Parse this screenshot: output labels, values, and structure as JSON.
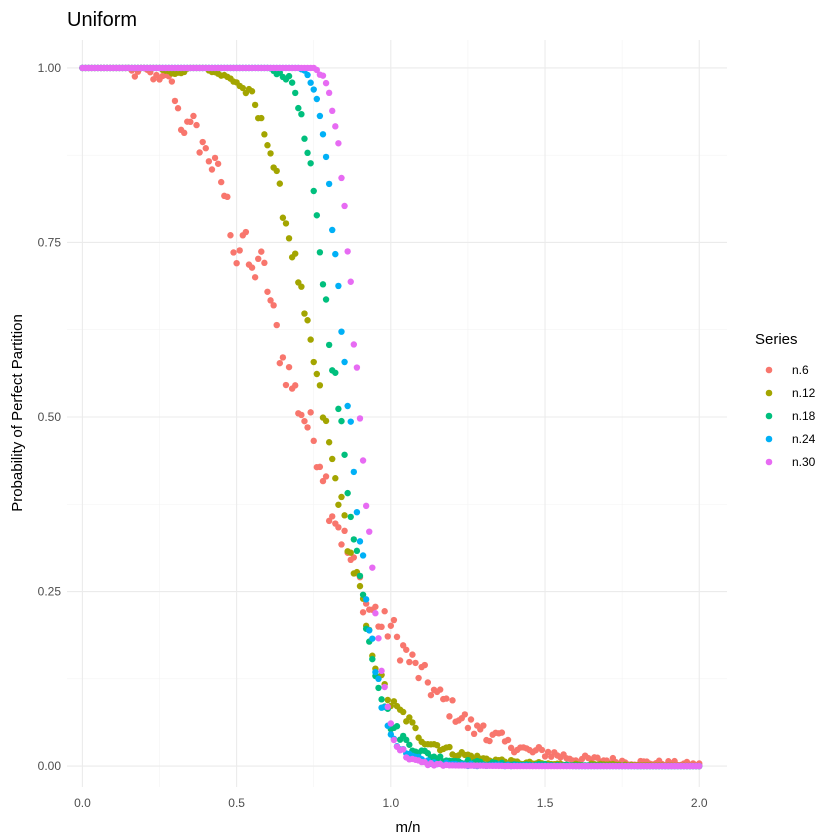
{
  "chart_data": {
    "type": "scatter",
    "title": "Uniform",
    "xlabel": "m/n",
    "ylabel": "Probability of Perfect Partition",
    "xlim": [
      -0.05,
      2.09
    ],
    "ylim": [
      -0.03,
      1.04
    ],
    "x_ticks": [
      0.0,
      0.5,
      1.0,
      1.5,
      2.0
    ],
    "x_tick_labels": [
      "0.0",
      "0.5",
      "1.0",
      "1.5",
      "2.0"
    ],
    "y_ticks": [
      0.0,
      0.25,
      0.5,
      0.75,
      1.0
    ],
    "y_tick_labels": [
      "0.00",
      "0.25",
      "0.50",
      "0.75",
      "1.00"
    ],
    "grid": true,
    "legend": {
      "title": "Series",
      "position": "right"
    },
    "x_step": 0.01,
    "series": [
      {
        "name": "n.6",
        "color": "#F8766D",
        "points": [
          [
            0.0,
            1.0
          ],
          [
            0.05,
            1.0
          ],
          [
            0.1,
            1.0
          ],
          [
            0.15,
            1.0
          ],
          [
            0.17,
            0.99
          ],
          [
            0.2,
            1.0
          ],
          [
            0.25,
            0.98
          ],
          [
            0.28,
            0.99
          ],
          [
            0.3,
            0.96
          ],
          [
            0.32,
            0.92
          ],
          [
            0.35,
            0.91
          ],
          [
            0.37,
            0.93
          ],
          [
            0.38,
            0.88
          ],
          [
            0.4,
            0.89
          ],
          [
            0.42,
            0.86
          ],
          [
            0.45,
            0.84
          ],
          [
            0.47,
            0.8
          ],
          [
            0.5,
            0.73
          ],
          [
            0.52,
            0.76
          ],
          [
            0.55,
            0.7
          ],
          [
            0.57,
            0.73
          ],
          [
            0.6,
            0.69
          ],
          [
            0.62,
            0.64
          ],
          [
            0.65,
            0.58
          ],
          [
            0.67,
            0.56
          ],
          [
            0.7,
            0.52
          ],
          [
            0.72,
            0.5
          ],
          [
            0.75,
            0.47
          ],
          [
            0.78,
            0.43
          ],
          [
            0.8,
            0.38
          ],
          [
            0.82,
            0.36
          ],
          [
            0.85,
            0.32
          ],
          [
            0.88,
            0.28
          ],
          [
            0.9,
            0.26
          ],
          [
            0.92,
            0.23
          ],
          [
            0.95,
            0.22
          ],
          [
            0.97,
            0.2
          ],
          [
            1.0,
            0.2
          ],
          [
            1.02,
            0.18
          ],
          [
            1.05,
            0.16
          ],
          [
            1.08,
            0.14
          ],
          [
            1.1,
            0.13
          ],
          [
            1.12,
            0.12
          ],
          [
            1.15,
            0.1
          ],
          [
            1.18,
            0.09
          ],
          [
            1.2,
            0.08
          ],
          [
            1.23,
            0.07
          ],
          [
            1.25,
            0.06
          ],
          [
            1.28,
            0.05
          ],
          [
            1.3,
            0.06
          ],
          [
            1.32,
            0.04
          ],
          [
            1.35,
            0.04
          ],
          [
            1.38,
            0.03
          ],
          [
            1.4,
            0.03
          ],
          [
            1.45,
            0.02
          ],
          [
            1.5,
            0.02
          ],
          [
            1.55,
            0.015
          ],
          [
            1.6,
            0.01
          ],
          [
            1.7,
            0.008
          ],
          [
            1.8,
            0.005
          ],
          [
            1.9,
            0.004
          ],
          [
            2.0,
            0.002
          ]
        ]
      },
      {
        "name": "n.12",
        "color": "#A3A500",
        "points": [
          [
            0.0,
            1.0
          ],
          [
            0.1,
            1.0
          ],
          [
            0.2,
            1.0
          ],
          [
            0.25,
            1.0
          ],
          [
            0.3,
            0.99
          ],
          [
            0.35,
            1.0
          ],
          [
            0.4,
            1.0
          ],
          [
            0.45,
            0.99
          ],
          [
            0.5,
            0.98
          ],
          [
            0.52,
            0.97
          ],
          [
            0.55,
            0.96
          ],
          [
            0.57,
            0.93
          ],
          [
            0.6,
            0.9
          ],
          [
            0.62,
            0.86
          ],
          [
            0.65,
            0.8
          ],
          [
            0.67,
            0.76
          ],
          [
            0.7,
            0.7
          ],
          [
            0.72,
            0.64
          ],
          [
            0.75,
            0.58
          ],
          [
            0.77,
            0.53
          ],
          [
            0.8,
            0.46
          ],
          [
            0.82,
            0.41
          ],
          [
            0.85,
            0.35
          ],
          [
            0.87,
            0.3
          ],
          [
            0.9,
            0.25
          ],
          [
            0.92,
            0.2
          ],
          [
            0.95,
            0.15
          ],
          [
            0.97,
            0.12
          ],
          [
            1.0,
            0.09
          ],
          [
            1.02,
            0.08
          ],
          [
            1.05,
            0.07
          ],
          [
            1.08,
            0.05
          ],
          [
            1.1,
            0.04
          ],
          [
            1.12,
            0.035
          ],
          [
            1.15,
            0.03
          ],
          [
            1.18,
            0.025
          ],
          [
            1.2,
            0.02
          ],
          [
            1.25,
            0.015
          ],
          [
            1.3,
            0.01
          ],
          [
            1.35,
            0.008
          ],
          [
            1.4,
            0.005
          ],
          [
            1.5,
            0.003
          ],
          [
            1.6,
            0.002
          ],
          [
            1.8,
            0.001
          ],
          [
            2.0,
            0.0
          ]
        ]
      },
      {
        "name": "n.18",
        "color": "#00BF7D",
        "points": [
          [
            0.0,
            1.0
          ],
          [
            0.2,
            1.0
          ],
          [
            0.4,
            1.0
          ],
          [
            0.5,
            1.0
          ],
          [
            0.6,
            1.0
          ],
          [
            0.65,
            0.99
          ],
          [
            0.68,
            0.98
          ],
          [
            0.7,
            0.95
          ],
          [
            0.72,
            0.9
          ],
          [
            0.74,
            0.85
          ],
          [
            0.76,
            0.78
          ],
          [
            0.78,
            0.7
          ],
          [
            0.8,
            0.62
          ],
          [
            0.82,
            0.55
          ],
          [
            0.84,
            0.48
          ],
          [
            0.86,
            0.4
          ],
          [
            0.88,
            0.34
          ],
          [
            0.9,
            0.27
          ],
          [
            0.92,
            0.21
          ],
          [
            0.94,
            0.16
          ],
          [
            0.96,
            0.12
          ],
          [
            0.98,
            0.09
          ],
          [
            1.0,
            0.06
          ],
          [
            1.02,
            0.05
          ],
          [
            1.05,
            0.035
          ],
          [
            1.08,
            0.025
          ],
          [
            1.1,
            0.02
          ],
          [
            1.15,
            0.012
          ],
          [
            1.2,
            0.008
          ],
          [
            1.3,
            0.004
          ],
          [
            1.4,
            0.002
          ],
          [
            1.6,
            0.001
          ],
          [
            1.8,
            0.0
          ],
          [
            2.0,
            0.0
          ]
        ]
      },
      {
        "name": "n.24",
        "color": "#00B0F6",
        "points": [
          [
            0.0,
            1.0
          ],
          [
            0.2,
            1.0
          ],
          [
            0.4,
            1.0
          ],
          [
            0.6,
            1.0
          ],
          [
            0.7,
            1.0
          ],
          [
            0.73,
            0.99
          ],
          [
            0.75,
            0.97
          ],
          [
            0.77,
            0.93
          ],
          [
            0.79,
            0.86
          ],
          [
            0.81,
            0.78
          ],
          [
            0.83,
            0.68
          ],
          [
            0.85,
            0.58
          ],
          [
            0.87,
            0.48
          ],
          [
            0.89,
            0.38
          ],
          [
            0.91,
            0.29
          ],
          [
            0.93,
            0.21
          ],
          [
            0.95,
            0.14
          ],
          [
            0.97,
            0.09
          ],
          [
            0.99,
            0.06
          ],
          [
            1.01,
            0.04
          ],
          [
            1.03,
            0.025
          ],
          [
            1.06,
            0.015
          ],
          [
            1.1,
            0.008
          ],
          [
            1.15,
            0.004
          ],
          [
            1.2,
            0.002
          ],
          [
            1.4,
            0.001
          ],
          [
            1.6,
            0.0
          ],
          [
            2.0,
            0.0
          ]
        ]
      },
      {
        "name": "n.30",
        "color": "#E76BF3",
        "points": [
          [
            0.0,
            1.0
          ],
          [
            0.1,
            1.0
          ],
          [
            0.2,
            1.0
          ],
          [
            0.3,
            1.0
          ],
          [
            0.4,
            1.0
          ],
          [
            0.5,
            1.0
          ],
          [
            0.6,
            1.0
          ],
          [
            0.7,
            1.0
          ],
          [
            0.75,
            1.0
          ],
          [
            0.78,
            0.99
          ],
          [
            0.8,
            0.97
          ],
          [
            0.82,
            0.92
          ],
          [
            0.84,
            0.84
          ],
          [
            0.86,
            0.74
          ],
          [
            0.88,
            0.62
          ],
          [
            0.9,
            0.5
          ],
          [
            0.92,
            0.38
          ],
          [
            0.94,
            0.27
          ],
          [
            0.96,
            0.18
          ],
          [
            0.98,
            0.11
          ],
          [
            1.0,
            0.06
          ],
          [
            1.02,
            0.03
          ],
          [
            1.05,
            0.015
          ],
          [
            1.08,
            0.007
          ],
          [
            1.12,
            0.003
          ],
          [
            1.2,
            0.001
          ],
          [
            1.4,
            0.0
          ],
          [
            1.7,
            0.0
          ],
          [
            2.0,
            0.0
          ]
        ]
      }
    ]
  }
}
